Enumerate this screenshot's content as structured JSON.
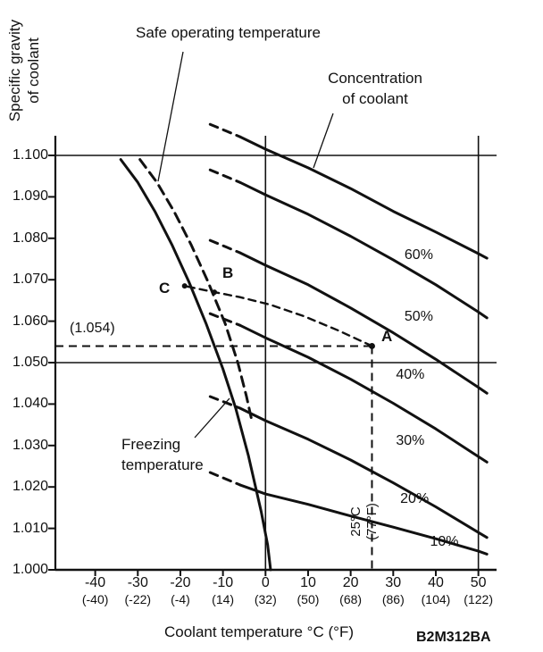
{
  "figure": {
    "y_axis_title_lines": [
      "Specific gravity",
      "of coolant"
    ],
    "x_axis_title": "Coolant temperature °C (°F)",
    "code": "B2M312BA",
    "annotations": {
      "safe_operating": "Safe operating temperature",
      "concentration_line1": "Concentration",
      "concentration_line2": "of coolant",
      "freezing_line1": "Freezing",
      "freezing_line2": "temperature",
      "gravity_callout": "(1.054)",
      "temp_callout_line1": "25°C",
      "temp_callout_line2": "(77°F)",
      "point_a": "A",
      "point_b": "B",
      "point_c": "C"
    }
  },
  "chart_data": {
    "type": "line",
    "title": "Specific gravity of coolant vs coolant temperature by coolant concentration",
    "xlabel": "Coolant temperature °C (°F)",
    "ylabel": "Specific gravity of coolant",
    "xlim": [
      -49,
      54
    ],
    "ylim": [
      1.0,
      1.105
    ],
    "grid": false,
    "x_ticks": [
      {
        "c": "-40",
        "f": "(-40)",
        "value": -40
      },
      {
        "c": "-30",
        "f": "(-22)",
        "value": -30
      },
      {
        "c": "-20",
        "f": "(-4)",
        "value": -20
      },
      {
        "c": "-10",
        "f": "(14)",
        "value": -10
      },
      {
        "c": "0",
        "f": "(32)",
        "value": 0
      },
      {
        "c": "10",
        "f": "(50)",
        "value": 10
      },
      {
        "c": "20",
        "f": "(68)",
        "value": 20
      },
      {
        "c": "30",
        "f": "(86)",
        "value": 30
      },
      {
        "c": "40",
        "f": "(104)",
        "value": 40
      },
      {
        "c": "50",
        "f": "(122)",
        "value": 50
      }
    ],
    "y_ticks": [
      {
        "label": "1.100",
        "value": 1.1
      },
      {
        "label": "1.090",
        "value": 1.09
      },
      {
        "label": "1.080",
        "value": 1.08
      },
      {
        "label": "1.070",
        "value": 1.07
      },
      {
        "label": "1.060",
        "value": 1.06
      },
      {
        "label": "1.050",
        "value": 1.05
      },
      {
        "label": "1.040",
        "value": 1.04
      },
      {
        "label": "1.030",
        "value": 1.03
      },
      {
        "label": "1.020",
        "value": 1.02
      },
      {
        "label": "1.010",
        "value": 1.01
      },
      {
        "label": "1.000",
        "value": 1.0
      }
    ],
    "reference_lines_y": [
      1.1,
      1.05
    ],
    "axis_vertical_lines_x": [
      0,
      50
    ],
    "series": [
      {
        "name": "freezing-temperature",
        "label": "Freezing temperature",
        "style": "solid",
        "width": 3,
        "points": [
          [
            -34,
            1.099
          ],
          [
            -30,
            1.0935
          ],
          [
            -26,
            1.0865
          ],
          [
            -22,
            1.0785
          ],
          [
            -18,
            1.0695
          ],
          [
            -14,
            1.0595
          ],
          [
            -10,
            1.0485
          ],
          [
            -7,
            1.039
          ],
          [
            -4,
            1.0275
          ],
          [
            -1,
            1.014
          ],
          [
            0.5,
            1.006
          ],
          [
            1.2,
            1.0
          ]
        ]
      },
      {
        "name": "safe-operating-temperature",
        "label": "Safe operating temperature",
        "style": "dashed",
        "width": 3,
        "points": [
          [
            -29.5,
            1.099
          ],
          [
            -25.5,
            1.0935
          ],
          [
            -21.5,
            1.0865
          ],
          [
            -17.5,
            1.0785
          ],
          [
            -13.5,
            1.0695
          ],
          [
            -9.5,
            1.0595
          ],
          [
            -6.5,
            1.05
          ],
          [
            -4.5,
            1.042
          ],
          [
            -3.2,
            1.036
          ]
        ]
      },
      {
        "name": "concentration-60",
        "percent": "60%",
        "style": "solid",
        "width": 3,
        "label_pos": [
          36,
          1.0755
        ],
        "dash_ext": [
          [
            -13,
            1.1075
          ],
          [
            -6,
            1.1045
          ]
        ],
        "points": [
          [
            -6,
            1.1045
          ],
          [
            0,
            1.1015
          ],
          [
            10,
            1.097
          ],
          [
            20,
            1.092
          ],
          [
            30,
            1.0865
          ],
          [
            40,
            1.0815
          ],
          [
            50,
            1.0763
          ],
          [
            52,
            1.0752
          ]
        ]
      },
      {
        "name": "concentration-50",
        "percent": "50%",
        "style": "solid",
        "width": 3,
        "label_pos": [
          36,
          1.0605
        ],
        "dash_ext": [
          [
            -13,
            1.0965
          ],
          [
            -6,
            1.0935
          ]
        ],
        "points": [
          [
            -6,
            1.0935
          ],
          [
            0,
            1.0905
          ],
          [
            10,
            1.0858
          ],
          [
            20,
            1.0805
          ],
          [
            30,
            1.0748
          ],
          [
            40,
            1.0688
          ],
          [
            50,
            1.0622
          ],
          [
            52,
            1.0608
          ]
        ]
      },
      {
        "name": "concentration-40",
        "percent": "40%",
        "style": "solid",
        "width": 3,
        "label_pos": [
          34,
          1.0465
        ],
        "dash_ext": [
          [
            -13,
            1.0795
          ],
          [
            -6,
            1.0765
          ]
        ],
        "points": [
          [
            -6,
            1.0765
          ],
          [
            0,
            1.0735
          ],
          [
            10,
            1.0688
          ],
          [
            20,
            1.0632
          ],
          [
            30,
            1.0572
          ],
          [
            40,
            1.0508
          ],
          [
            50,
            1.044
          ],
          [
            52,
            1.0426
          ]
        ]
      },
      {
        "name": "concentration-30",
        "percent": "30%",
        "style": "solid",
        "width": 3,
        "label_pos": [
          34,
          1.0305
        ],
        "dash_ext": [
          [
            -13,
            1.0618
          ],
          [
            -6,
            1.059
          ]
        ],
        "points": [
          [
            -6,
            1.059
          ],
          [
            0,
            1.056
          ],
          [
            10,
            1.0513
          ],
          [
            20,
            1.046
          ],
          [
            30,
            1.0402
          ],
          [
            40,
            1.034
          ],
          [
            50,
            1.0273
          ],
          [
            52,
            1.026
          ]
        ]
      },
      {
        "name": "concentration-20",
        "percent": "20%",
        "style": "solid",
        "width": 3,
        "label_pos": [
          35,
          1.0165
        ],
        "dash_ext": [
          [
            -13,
            1.0418
          ],
          [
            -6,
            1.039
          ]
        ],
        "points": [
          [
            -6,
            1.039
          ],
          [
            0,
            1.036
          ],
          [
            10,
            1.0315
          ],
          [
            20,
            1.0265
          ],
          [
            30,
            1.021
          ],
          [
            40,
            1.0152
          ],
          [
            50,
            1.009
          ],
          [
            52,
            1.0078
          ]
        ]
      },
      {
        "name": "concentration-10",
        "percent": "10%",
        "style": "solid",
        "width": 3,
        "label_pos": [
          42,
          1.0063
        ],
        "dash_ext": [
          [
            -13,
            1.0235
          ],
          [
            -6,
            1.0205
          ]
        ],
        "points": [
          [
            -6,
            1.0205
          ],
          [
            0,
            1.0183
          ],
          [
            10,
            1.0158
          ],
          [
            20,
            1.013
          ],
          [
            30,
            1.0103
          ],
          [
            40,
            1.0075
          ],
          [
            50,
            1.0045
          ],
          [
            52,
            1.0038
          ]
        ]
      }
    ],
    "measurement": {
      "point_a": {
        "x": 25,
        "y": 1.054
      },
      "point_b": {
        "x": -12,
        "y": 1.067
      },
      "point_c": {
        "x": -19,
        "y": 1.0685
      },
      "h_ref_gravity": 1.054,
      "v_ref_temp_c": 25,
      "abc_line": [
        [
          25,
          1.054
        ],
        [
          17,
          1.0578
        ],
        [
          9,
          1.0612
        ],
        [
          1,
          1.064
        ],
        [
          -6,
          1.0658
        ],
        [
          -12,
          1.067
        ],
        [
          -19,
          1.0685
        ]
      ]
    }
  }
}
